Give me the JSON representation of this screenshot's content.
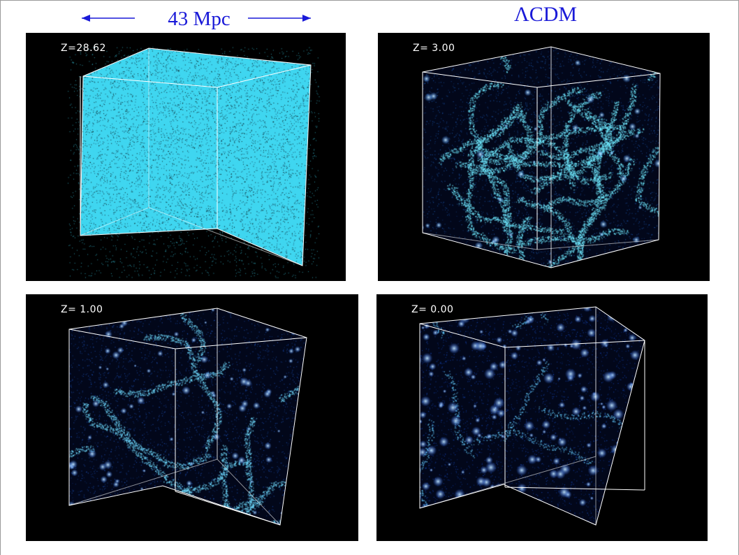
{
  "header": {
    "scale_label": "43 Mpc",
    "model_label": "ΛCDM",
    "label_color": "#1a1ad8"
  },
  "panels": [
    {
      "z_label": "Z=28.62",
      "particle_color": "#3fd6f0",
      "style": "uniform"
    },
    {
      "z_label": "Z= 3.00",
      "particle_color": "#2a7cf0",
      "style": "filaments-fine"
    },
    {
      "z_label": "Z= 1.00",
      "particle_color": "#2a6ef2",
      "style": "filaments"
    },
    {
      "z_label": "Z= 0.00",
      "particle_color": "#1f5ef0",
      "style": "halos"
    }
  ]
}
